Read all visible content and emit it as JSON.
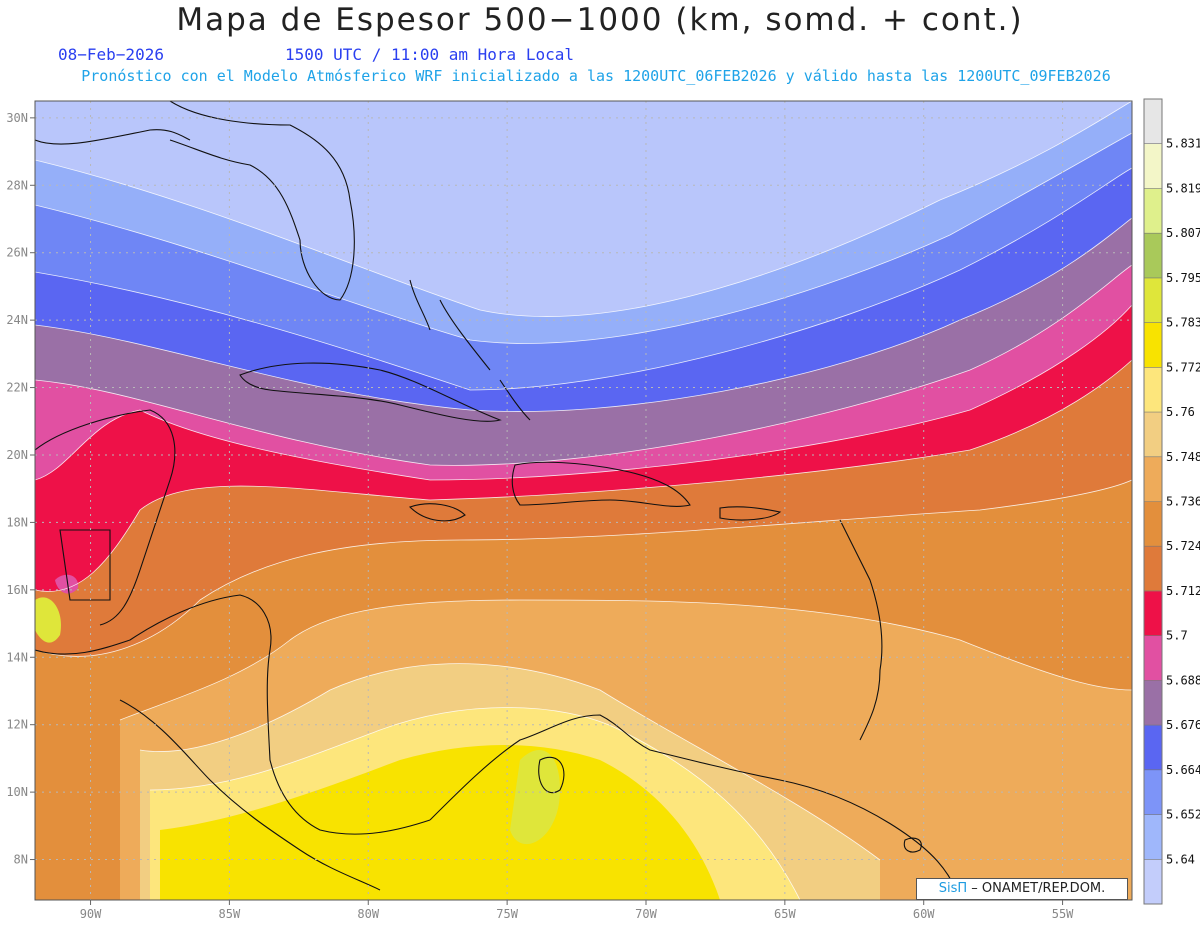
{
  "title": "Mapa de Espesor 500−1000 (km, somd. + cont.)",
  "date": "08−Feb−2026",
  "time": "1500 UTC / 11:00 am Hora Local",
  "subtitle": "Pronóstico con el Modelo Atmósferico WRF inicializado a las 1200UTC_06FEB2026 y válido hasta las  1200UTC_09FEB2026",
  "credit": {
    "brand": "SisΠ",
    "rest": " – ONAMET/REP.DOM."
  },
  "map_extent": {
    "lon": [
      -92,
      -52.5
    ],
    "lat": [
      6.8,
      30.5
    ]
  },
  "lat_ticks": [
    {
      "value": 30,
      "label": "30N"
    },
    {
      "value": 28,
      "label": "28N"
    },
    {
      "value": 26,
      "label": "26N"
    },
    {
      "value": 24,
      "label": "24N"
    },
    {
      "value": 22,
      "label": "22N"
    },
    {
      "value": 20,
      "label": "20N"
    },
    {
      "value": 18,
      "label": "18N"
    },
    {
      "value": 16,
      "label": "16N"
    },
    {
      "value": 14,
      "label": "14N"
    },
    {
      "value": 12,
      "label": "12N"
    },
    {
      "value": 10,
      "label": "10N"
    },
    {
      "value": 8,
      "label": "8N"
    }
  ],
  "lon_ticks": [
    {
      "value": -90,
      "label": "90W"
    },
    {
      "value": -85,
      "label": "85W"
    },
    {
      "value": -80,
      "label": "80W"
    },
    {
      "value": -75,
      "label": "75W"
    },
    {
      "value": -70,
      "label": "70W"
    },
    {
      "value": -65,
      "label": "65W"
    },
    {
      "value": -60,
      "label": "60W"
    },
    {
      "value": -55,
      "label": "55W"
    }
  ],
  "colorbar": {
    "bins": [
      "#c3cdfb",
      "#9fb7fb",
      "#7d94f8",
      "#5a66f2",
      "#9a70a6",
      "#e150a2",
      "#ee1148",
      "#df7a3a",
      "#e38f3c",
      "#eeab5a",
      "#f2ce82",
      "#fde67c",
      "#f8e300",
      "#dfe63a",
      "#a9c95a",
      "#dff08c",
      "#f3f6c8",
      "#e6e6e6"
    ],
    "labels": [
      "5.64",
      "5.652",
      "5.664",
      "5.676",
      "5.688",
      "5.7",
      "5.712",
      "5.724",
      "5.736",
      "5.748",
      "5.76",
      "5.772",
      "5.783",
      "5.795",
      "5.807",
      "5.819",
      "5.831"
    ]
  },
  "legend_colors": {
    "c0": "#b9c6fb",
    "c1": "#95aff9",
    "c2": "#6f86f5",
    "c3": "#5a66f2",
    "c4": "#9a70a6",
    "c5": "#e150a2",
    "c6": "#ee1148",
    "c7": "#df7a3a",
    "c8": "#e38f3c",
    "c9": "#eeab5a",
    "c10": "#f2ce82",
    "c11": "#fde67c",
    "c12": "#f8e300",
    "c13": "#dfe63a"
  }
}
